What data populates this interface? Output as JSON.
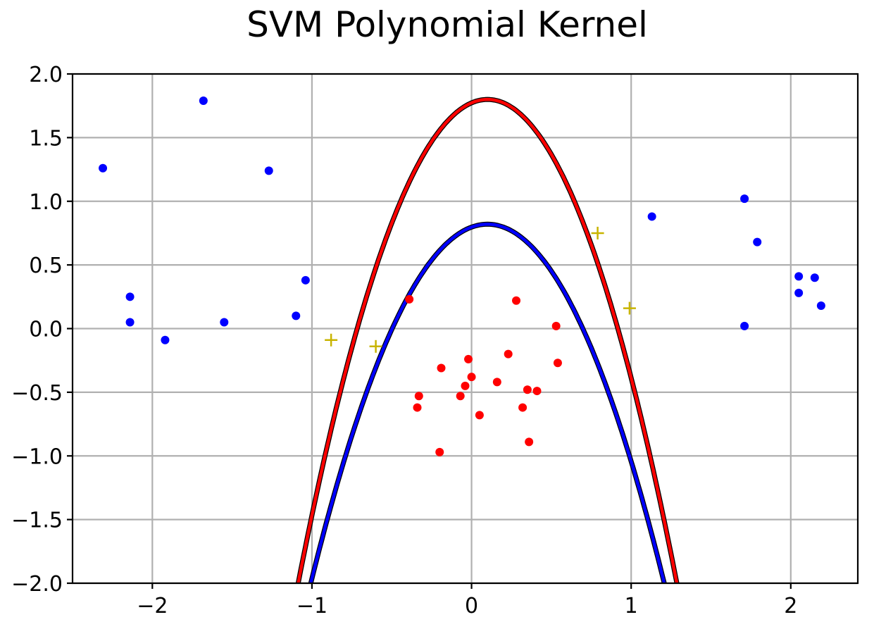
{
  "chart_data": {
    "type": "scatter",
    "title": "SVM Polynomial Kernel",
    "xlabel": "",
    "ylabel": "",
    "xlim": [
      -2.5,
      2.42
    ],
    "ylim": [
      -2.0,
      2.0
    ],
    "grid": true,
    "xticks": [
      -2,
      -1,
      0,
      1,
      2
    ],
    "xtick_labels": [
      "−2",
      "−1",
      "0",
      "1",
      "2"
    ],
    "yticks": [
      2.0,
      1.5,
      1.0,
      0.5,
      0.0,
      -0.5,
      -1.0,
      -1.5,
      -2.0
    ],
    "ytick_labels": [
      "2.0",
      "1.5",
      "1.0",
      "0.5",
      "0.0",
      "−0.5",
      "−1.0",
      "−1.5",
      "−2.0"
    ],
    "series": [
      {
        "kind": "points",
        "color": "#0000ff",
        "x": [
          -2.31,
          -1.68,
          -1.27,
          -2.14,
          -2.14,
          -1.92,
          -1.55,
          -1.1,
          -1.04,
          1.13,
          1.71,
          1.79,
          2.05,
          2.15,
          2.05,
          2.19,
          1.71
        ],
        "y": [
          1.26,
          1.79,
          1.24,
          0.25,
          0.05,
          -0.09,
          0.05,
          0.1,
          0.38,
          0.88,
          1.02,
          0.68,
          0.41,
          0.4,
          0.28,
          0.18,
          0.02
        ]
      },
      {
        "kind": "points",
        "color": "#ff0000",
        "x": [
          -0.39,
          0.28,
          0.53,
          0.23,
          -0.02,
          0.54,
          -0.19,
          0.0,
          -0.04,
          0.16,
          0.35,
          0.41,
          -0.33,
          -0.07,
          -0.34,
          0.32,
          0.05,
          0.36,
          -0.2
        ],
        "y": [
          0.23,
          0.22,
          0.02,
          -0.2,
          -0.24,
          -0.27,
          -0.31,
          -0.38,
          -0.45,
          -0.42,
          -0.48,
          -0.49,
          -0.53,
          -0.53,
          -0.62,
          -0.62,
          -0.68,
          -0.89,
          -0.97
        ]
      },
      {
        "kind": "markers",
        "marker": "+",
        "color": "#c8b400",
        "x": [
          -0.88,
          -0.6,
          0.79,
          0.99
        ],
        "y": [
          -0.09,
          -0.14,
          0.75,
          0.16
        ]
      },
      {
        "kind": "curve",
        "color": "#ff0000",
        "vertex": [
          0.1,
          1.8
        ],
        "a": 2.7,
        "y_from": -2.0
      },
      {
        "kind": "curve",
        "color": "#0000ff",
        "vertex": [
          0.1,
          0.82
        ],
        "a": 2.3,
        "y_from": -2.0
      }
    ]
  }
}
